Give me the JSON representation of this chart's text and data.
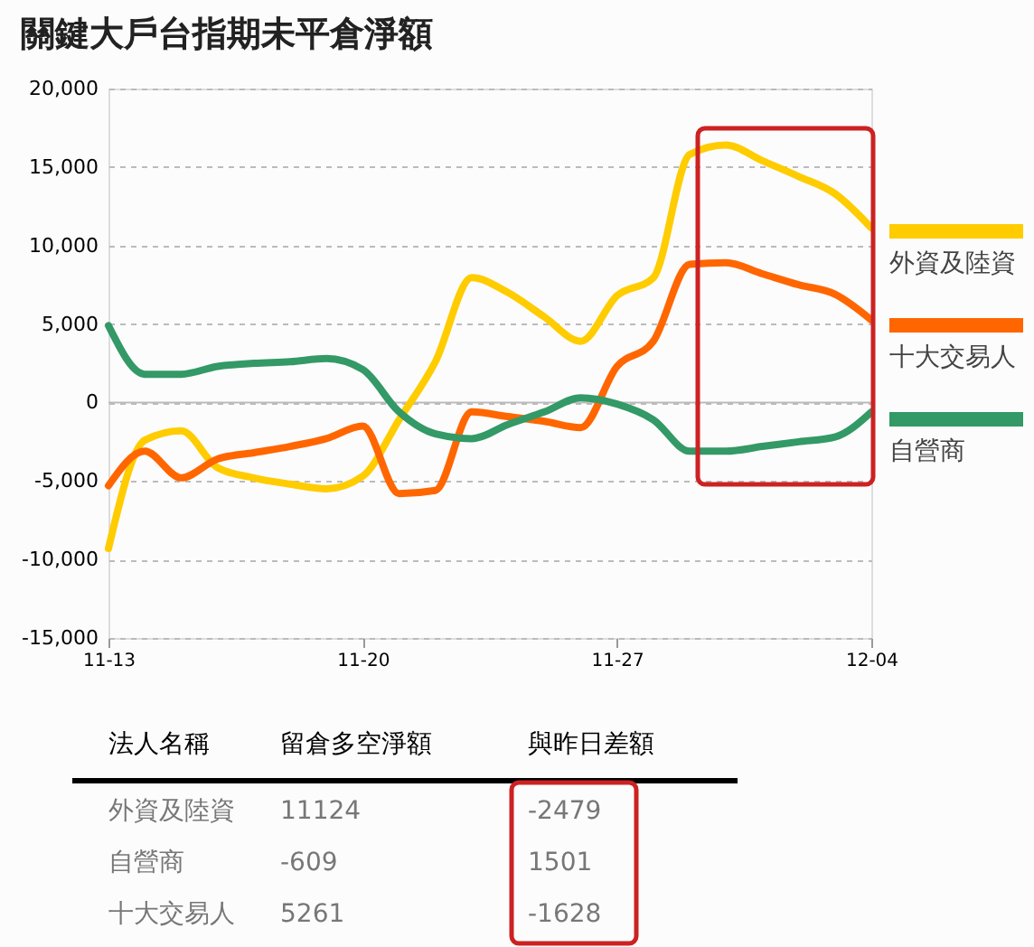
{
  "chart_data": {
    "type": "line",
    "title": "關鍵大戶台指期未平倉淨額",
    "x": [
      "--11-13",
      "--11-14",
      "--11-15",
      "--11-16",
      "--11-17",
      "--11-18",
      "--11-19",
      "--11-20",
      "--11-21",
      "--11-22",
      "--11-23",
      "--11-24",
      "--11-25",
      "--11-26",
      "--11-27",
      "--11-28",
      "--11-29",
      "--11-30",
      "--12-01",
      "--12-02",
      "--12-03",
      "--12-04"
    ],
    "series": [
      {
        "name": "外資及陸資",
        "color": "#ffcc00",
        "values": [
          -9300,
          -2400,
          -1800,
          -4150,
          -4800,
          -5200,
          -5500,
          -4700,
          -1100,
          2600,
          7950,
          7000,
          5450,
          3900,
          6800,
          7950,
          15800,
          16400,
          15400,
          14400,
          13300,
          11124
        ]
      },
      {
        "name": "十大交易人",
        "color": "#ff6600",
        "values": [
          -5300,
          -3100,
          -4800,
          -3600,
          -3200,
          -2800,
          -2300,
          -1500,
          -5800,
          -5600,
          -600,
          -900,
          -1200,
          -1600,
          2300,
          3900,
          8800,
          8900,
          8200,
          7500,
          6900,
          5261
        ]
      },
      {
        "name": "自營商",
        "color": "#339966",
        "values": [
          4900,
          1800,
          1800,
          2300,
          2500,
          2600,
          2800,
          2100,
          -600,
          -2000,
          -2300,
          -1400,
          -600,
          300,
          -100,
          -1100,
          -3100,
          -3100,
          -2800,
          -2500,
          -2200,
          -609
        ]
      }
    ],
    "xlim": [
      "--11-13",
      "--12-04"
    ],
    "xticks": [
      {
        "value": "--11-13",
        "label": "11-13"
      },
      {
        "value": "--11-20",
        "label": "11-20"
      },
      {
        "value": "--11-27",
        "label": "11-27"
      },
      {
        "value": "--12-04",
        "label": "12-04"
      }
    ],
    "ylim": [
      -15000,
      20000
    ],
    "yticks": [
      {
        "value": -15000,
        "label": "-15,000"
      },
      {
        "value": -10000,
        "label": "-10,000"
      },
      {
        "value": -5000,
        "label": "-5,000"
      },
      0,
      {
        "value": 5000,
        "label": "5,000"
      },
      {
        "value": 10000,
        "label": "10,000"
      },
      {
        "value": 15000,
        "label": "15,000"
      },
      {
        "value": 20000,
        "label": "20,000"
      }
    ],
    "grid": "y",
    "legend": "right",
    "line_style": "solid",
    "marker": "none",
    "annotations": [
      "法人名稱",
      "留倉多空淨額",
      "與昨日差額",
      "外資及陸資",
      "11124",
      "-2479",
      "自營商",
      "-609",
      "1501",
      "十大交易人",
      "5261",
      "-1628"
    ]
  }
}
